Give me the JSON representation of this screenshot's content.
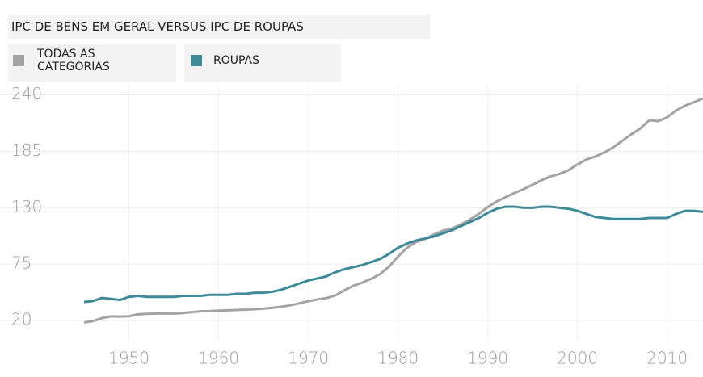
{
  "chart_data": {
    "type": "line",
    "title": "IPC DE BENS EM GERAL VERSUS IPC DE ROUPAS",
    "x": [
      1945,
      1946,
      1947,
      1948,
      1949,
      1950,
      1951,
      1952,
      1953,
      1954,
      1955,
      1956,
      1957,
      1958,
      1959,
      1960,
      1961,
      1962,
      1963,
      1964,
      1965,
      1966,
      1967,
      1968,
      1969,
      1970,
      1971,
      1972,
      1973,
      1974,
      1975,
      1976,
      1977,
      1978,
      1979,
      1980,
      1981,
      1982,
      1983,
      1984,
      1985,
      1986,
      1987,
      1988,
      1989,
      1990,
      1991,
      1992,
      1993,
      1994,
      1995,
      1996,
      1997,
      1998,
      1999,
      2000,
      2001,
      2002,
      2003,
      2004,
      2005,
      2006,
      2007,
      2008,
      2009,
      2010,
      2011,
      2012,
      2013,
      2014
    ],
    "series": [
      {
        "name": "TODAS AS CATEGORIAS",
        "color": "#a3a3a3",
        "values": [
          18,
          19.5,
          22.3,
          24,
          23.8,
          24.1,
          26,
          26.5,
          26.7,
          26.9,
          26.8,
          27.2,
          28.1,
          28.9,
          29.1,
          29.6,
          29.9,
          30.2,
          30.6,
          31,
          31.5,
          32.4,
          33.4,
          34.8,
          36.7,
          38.8,
          40.5,
          41.8,
          44.4,
          49.3,
          53.8,
          56.9,
          60.6,
          65.2,
          72.6,
          82.4,
          90.9,
          96.5,
          99.6,
          103.9,
          107.6,
          109.6,
          113.6,
          118.3,
          124,
          130.7,
          136.2,
          140.3,
          144.5,
          148.2,
          152.4,
          156.9,
          160.5,
          163,
          166.6,
          172.2,
          177.1,
          179.9,
          184,
          188.9,
          195.3,
          201.6,
          207.3,
          215.3,
          214.5,
          218.1,
          224.9,
          229.6,
          233,
          236.7
        ]
      },
      {
        "name": "ROUPAS",
        "color": "#3f8a99",
        "values": [
          38,
          39,
          42,
          41,
          40,
          43,
          44,
          43,
          43,
          43,
          43,
          44,
          44,
          44,
          45,
          45,
          45,
          46,
          46,
          47,
          47,
          48,
          50,
          53,
          56,
          59,
          61,
          63,
          67,
          70,
          72,
          74,
          77,
          80,
          85,
          91,
          95,
          98,
          100,
          102,
          105,
          108,
          112,
          116,
          120,
          125,
          129,
          131,
          131,
          130,
          130,
          131,
          131,
          130,
          129,
          127,
          124,
          121,
          120,
          119,
          119,
          119,
          119,
          120,
          120,
          120,
          124,
          127,
          127,
          126
        ]
      }
    ],
    "xlim": [
      1944,
      2014
    ],
    "xticks": [
      1950,
      1960,
      1970,
      1980,
      1990,
      2000,
      2010
    ],
    "ylim": [
      5,
      250
    ],
    "yticks": [
      20,
      75,
      130,
      185,
      240
    ],
    "grid": true
  }
}
